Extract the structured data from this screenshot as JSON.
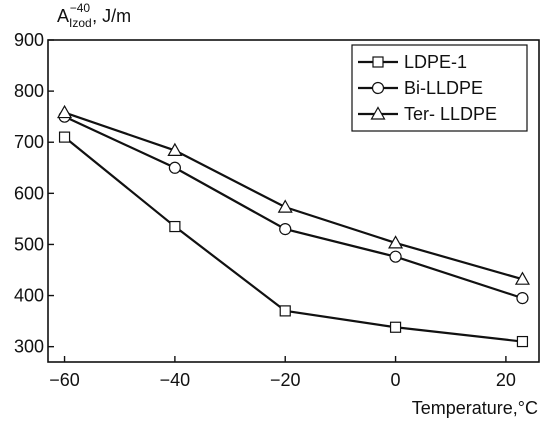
{
  "chart_data": {
    "type": "line",
    "ylabel_main": "A",
    "ylabel_sub": "Izod",
    "ylabel_sup": "−40",
    "ylabel_unit": ", J/m",
    "xlabel": "Temperature,°C",
    "xlim": [
      -63,
      26
    ],
    "ylim": [
      270,
      900
    ],
    "x_ticks": [
      -60,
      -40,
      -20,
      0,
      20
    ],
    "x_tick_labels": [
      "−60",
      "−40",
      "−20",
      "0",
      "20"
    ],
    "y_ticks": [
      300,
      400,
      500,
      600,
      700,
      800,
      900
    ],
    "y_tick_labels": [
      "300",
      "400",
      "500",
      "600",
      "700",
      "800",
      "900"
    ],
    "grid": false,
    "legend_position": "top-right",
    "x": [
      -60,
      -40,
      -20,
      0,
      23
    ],
    "series": [
      {
        "name": "LDPE-1",
        "marker": "square",
        "values": [
          710,
          535,
          370,
          338,
          310
        ]
      },
      {
        "name": "Bi-LLDPE",
        "marker": "circle",
        "values": [
          750,
          650,
          530,
          476,
          395
        ]
      },
      {
        "name": "Ter- LLDPE",
        "marker": "triangle",
        "values": [
          758,
          684,
          573,
          503,
          432
        ]
      }
    ],
    "line_color": "#111111"
  }
}
